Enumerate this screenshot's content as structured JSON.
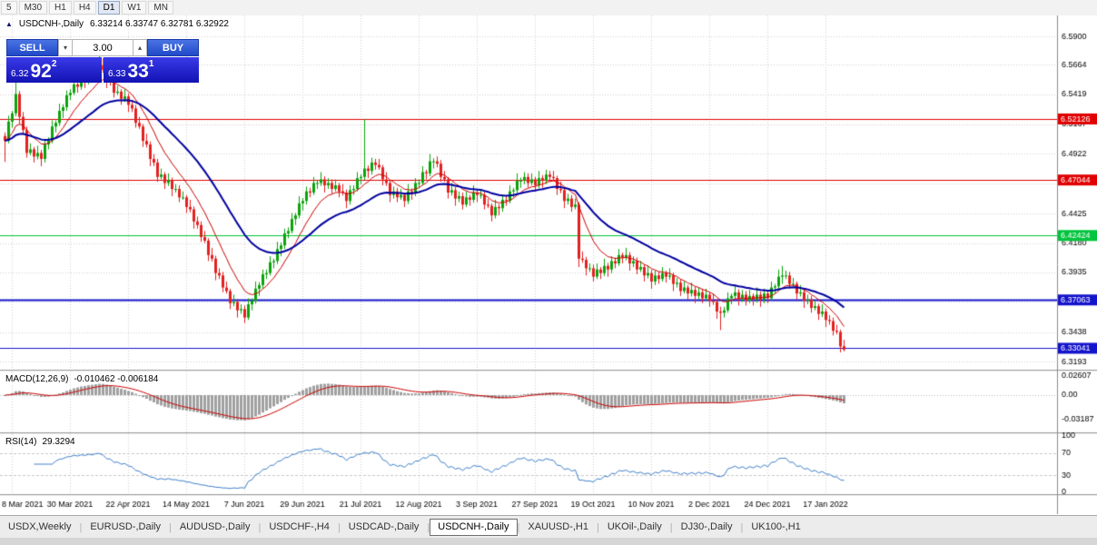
{
  "toolbar": {
    "timeframes": [
      {
        "label": "5",
        "active": false
      },
      {
        "label": "M30",
        "active": false
      },
      {
        "label": "H1",
        "active": false
      },
      {
        "label": "H4",
        "active": false
      },
      {
        "label": "D1",
        "active": true
      },
      {
        "label": "W1",
        "active": false
      },
      {
        "label": "MN",
        "active": false
      }
    ]
  },
  "chart_header": {
    "toggle_icon": "▲",
    "symbol": "USDCNH-,Daily",
    "ohlc": "6.33214 6.33747 6.32781 6.32922"
  },
  "one_click_trading": {
    "sell_label": "SELL",
    "buy_label": "BUY",
    "volume": "3.00",
    "bid": {
      "prefix": "6.32",
      "big": "92",
      "sup": "2"
    },
    "ask": {
      "prefix": "6.33",
      "big": "33",
      "sup": "1"
    }
  },
  "indicator_labels": {
    "macd": "MACD(12,26,9)",
    "macd_values": "-0.010462 -0.006184",
    "rsi": "RSI(14)",
    "rsi_value": "29.3294"
  },
  "tabs": [
    {
      "label": "USDX,Weekly",
      "active": false
    },
    {
      "label": "EURUSD-,Daily",
      "active": false
    },
    {
      "label": "AUDUSD-,Daily",
      "active": false
    },
    {
      "label": "USDCHF-,H4",
      "active": false
    },
    {
      "label": "USDCAD-,Daily",
      "active": false
    },
    {
      "label": "USDCNH-,Daily",
      "active": true
    },
    {
      "label": "XAUUSD-,H1",
      "active": false
    },
    {
      "label": "UKOil-,Daily",
      "active": false
    },
    {
      "label": "DJ30-,Daily",
      "active": false
    },
    {
      "label": "UK100-,H1",
      "active": false
    }
  ],
  "chart_data": {
    "type": "candlestick",
    "symbol": "USDCNH-",
    "timeframe": "Daily",
    "last_ohlc": {
      "open": 6.33214,
      "high": 6.33747,
      "low": 6.32781,
      "close": 6.32922
    },
    "closes": [
      6.503,
      6.519,
      6.526,
      6.542,
      6.523,
      6.512,
      6.493,
      6.496,
      6.49,
      6.493,
      6.488,
      6.5,
      6.503,
      6.515,
      6.518,
      6.528,
      6.531,
      6.541,
      6.543,
      6.55,
      6.548,
      6.555,
      6.553,
      6.56,
      6.558,
      6.565,
      6.566,
      6.562,
      6.553,
      6.552,
      6.543,
      6.544,
      6.538,
      6.54,
      6.533,
      6.53,
      6.518,
      6.515,
      6.503,
      6.5,
      6.488,
      6.485,
      6.473,
      6.475,
      6.468,
      6.47,
      6.463,
      6.463,
      6.456,
      6.456,
      6.448,
      6.446,
      6.436,
      6.433,
      6.423,
      6.42,
      6.408,
      6.405,
      6.393,
      6.391,
      6.381,
      6.378,
      6.368,
      6.369,
      6.362,
      6.363,
      6.356,
      6.367,
      6.37,
      6.38,
      6.383,
      6.392,
      6.393,
      6.402,
      6.403,
      6.413,
      6.416,
      6.426,
      6.428,
      6.438,
      6.441,
      6.451,
      6.453,
      6.461,
      6.46,
      6.468,
      6.468,
      6.471,
      6.466,
      6.468,
      6.463,
      6.466,
      6.461,
      6.46,
      6.453,
      6.462,
      6.463,
      6.472,
      6.473,
      6.48,
      6.478,
      6.485,
      6.483,
      6.481,
      6.471,
      6.468,
      6.458,
      6.461,
      6.456,
      6.458,
      6.453,
      6.461,
      6.46,
      6.468,
      6.468,
      6.477,
      6.476,
      6.486,
      6.486,
      6.484,
      6.473,
      6.471,
      6.46,
      6.462,
      6.455,
      6.457,
      6.45,
      6.456,
      6.454,
      6.46,
      6.458,
      6.458,
      6.45,
      6.449,
      6.441,
      6.448,
      6.447,
      6.454,
      6.453,
      6.461,
      6.462,
      6.47,
      6.47,
      6.473,
      6.468,
      6.471,
      6.466,
      6.472,
      6.47,
      6.475,
      6.473,
      6.472,
      6.463,
      6.462,
      6.453,
      6.455,
      6.448,
      6.45,
      6.405,
      6.404,
      6.397,
      6.397,
      6.39,
      6.396,
      6.393,
      6.399,
      6.396,
      6.403,
      6.401,
      6.408,
      6.406,
      6.408,
      6.401,
      6.403,
      6.396,
      6.398,
      6.391,
      6.393,
      6.386,
      6.391,
      6.388,
      6.393,
      6.39,
      6.391,
      6.384,
      6.385,
      6.378,
      6.381,
      6.376,
      6.379,
      6.374,
      6.377,
      6.372,
      6.375,
      6.37,
      6.369,
      6.361,
      6.36,
      6.362,
      6.372,
      6.374,
      6.377,
      6.372,
      6.375,
      6.37,
      6.374,
      6.371,
      6.375,
      6.371,
      6.376,
      6.372,
      6.381,
      6.382,
      6.39,
      6.391,
      6.391,
      6.384,
      6.384,
      6.376,
      6.377,
      6.37,
      6.371,
      6.364,
      6.3655,
      6.359,
      6.361,
      6.354,
      6.353,
      6.345,
      6.344,
      6.332,
      6.32922
    ],
    "wick_up_cycle": [
      0.003,
      0.005,
      0.002,
      0.006,
      0.0025,
      0.004
    ],
    "wick_down_cycle": [
      0.004,
      0.002,
      0.005,
      0.0025,
      0.006,
      0.003
    ],
    "wick_overrides": {
      "0": {
        "l": 6.4855
      },
      "3": {
        "h": 6.553
      },
      "26": {
        "h": 6.5755
      },
      "66": {
        "l": 6.3515
      },
      "99": {
        "h": 6.521
      },
      "158": {
        "l": 6.398
      },
      "197": {
        "l": 6.3455
      },
      "214": {
        "h": 6.399
      },
      "231": {
        "o": 6.33214,
        "h": 6.33747,
        "l": 6.32781,
        "c": 6.32922
      }
    },
    "x_labels": [
      "8 Mar 2021",
      "30 Mar 2021",
      "22 Apr 2021",
      "14 May 2021",
      "7 Jun 2021",
      "29 Jun 2021",
      "21 Jul 2021",
      "12 Aug 2021",
      "3 Sep 2021",
      "27 Sep 2021",
      "19 Oct 2021",
      "10 Nov 2021",
      "2 Dec 2021",
      "24 Dec 2021",
      "17 Jan 2022"
    ],
    "x_label_start_index": 2,
    "x_label_step": 16,
    "y_axis_ticks": [
      6.59,
      6.5664,
      6.5419,
      6.5167,
      6.4922,
      6.4677,
      6.4425,
      6.418,
      6.3935,
      6.369,
      6.3438,
      6.3193
    ],
    "price_range": {
      "max": 6.6074,
      "min": 6.3126
    },
    "levels": [
      {
        "price": 6.52126,
        "label": "6.52126",
        "color": "#e00000",
        "width": 1
      },
      {
        "price": 6.47044,
        "label": "6.47044",
        "color": "#e00000",
        "width": 1
      },
      {
        "price": 6.42424,
        "label": "6.42424",
        "color": "#00c43c",
        "width": 1
      },
      {
        "price": 6.37063,
        "label": "6.37063",
        "color": "#1414cc",
        "width": 2
      },
      {
        "price": 6.33041,
        "label": "6.33041",
        "color": "#1414cc",
        "width": 1
      }
    ],
    "moving_averages": [
      {
        "period": 10,
        "color": "#cc0000",
        "width": 1
      },
      {
        "period": 30,
        "color": "#0000a0",
        "width": 2
      }
    ],
    "macd": {
      "params": [
        12,
        26,
        9
      ],
      "main": -0.010462,
      "signal": -0.006184,
      "axis_labels": [
        {
          "v": 0.02607,
          "t": "0.02607"
        },
        {
          "v": 0,
          "t": "0.00"
        },
        {
          "v": -0.03187,
          "t": "-0.03187"
        }
      ],
      "hist_color": "#a0a0a0",
      "signal_color": "#cc0000"
    },
    "rsi": {
      "period": 14,
      "value": 29.3294,
      "axis_labels": [
        100,
        70,
        30,
        0
      ],
      "levels": [
        70,
        30
      ],
      "color": "#3d7ec9"
    },
    "colors": {
      "up": "#0ba30b",
      "down": "#e32020",
      "grid": "#d2d2d2",
      "bg": "#ffffff"
    }
  }
}
